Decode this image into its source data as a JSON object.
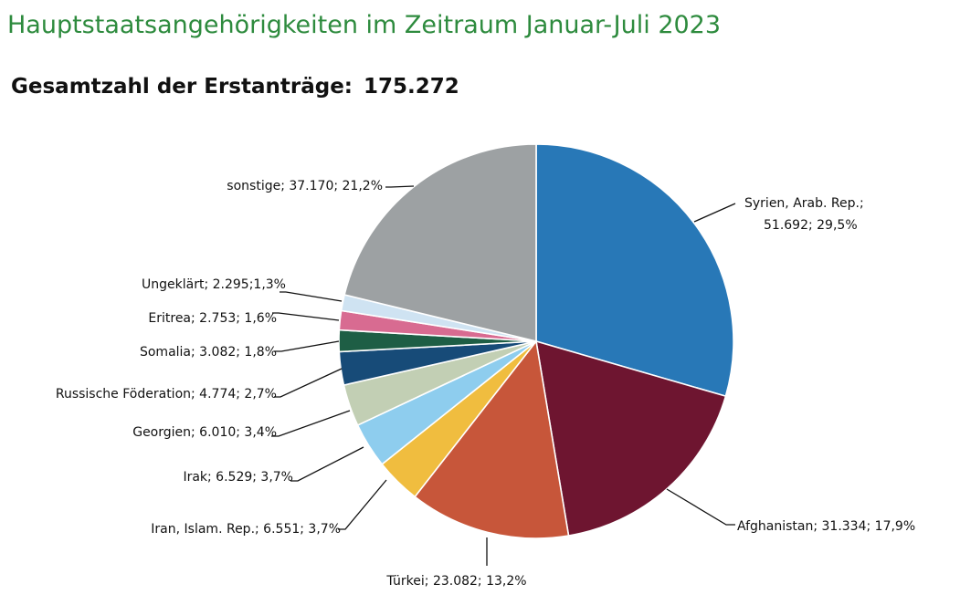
{
  "title": "Hauptstaatsangehörigkeiten im Zeitraum Januar-Juli 2023",
  "subtitle": {
    "label": "Gesamtzahl der Erstanträge:",
    "value": "175.272"
  },
  "chart_data": {
    "type": "pie",
    "start_angle": "12 o'clock",
    "direction": "clockwise",
    "slices": [
      {
        "name": "Syrien, Arab. Rep.",
        "value": 51692,
        "percent": 29.5,
        "color": "#2878b7",
        "label_lines": [
          "Syrien, Arab. Rep.;",
          "51.692; 29,5%"
        ]
      },
      {
        "name": "Afghanistan",
        "value": 31334,
        "percent": 17.9,
        "color": "#6e1530",
        "label_lines": [
          "Afghanistan; 31.334; 17,9%"
        ]
      },
      {
        "name": "Türkei",
        "value": 23082,
        "percent": 13.2,
        "color": "#c7563a",
        "label_lines": [
          "Türkei; 23.082; 13,2%"
        ]
      },
      {
        "name": "Iran, Islam. Rep.",
        "value": 6551,
        "percent": 3.7,
        "color": "#f0bd3f",
        "label_lines": [
          "Iran, Islam. Rep.; 6.551; 3,7%"
        ]
      },
      {
        "name": "Irak",
        "value": 6529,
        "percent": 3.7,
        "color": "#8ecdee",
        "label_lines": [
          "Irak; 6.529; 3,7%"
        ]
      },
      {
        "name": "Georgien",
        "value": 6010,
        "percent": 3.4,
        "color": "#c2cfb4",
        "label_lines": [
          "Georgien; 6.010; 3,4%"
        ]
      },
      {
        "name": "Russische Föderation",
        "value": 4774,
        "percent": 2.7,
        "color": "#174b78",
        "label_lines": [
          "Russische Föderation; 4.774; 2,7%"
        ]
      },
      {
        "name": "Somalia",
        "value": 3082,
        "percent": 1.8,
        "color": "#1e5e45",
        "label_lines": [
          "Somalia; 3.082; 1,8%"
        ]
      },
      {
        "name": "Eritrea",
        "value": 2753,
        "percent": 1.6,
        "color": "#d86b91",
        "label_lines": [
          "Eritrea; 2.753; 1,6%"
        ]
      },
      {
        "name": "Ungeklärt",
        "value": 2295,
        "percent": 1.3,
        "color": "#cfe3f2",
        "label_lines": [
          "Ungeklärt; 2.295;1,3%"
        ]
      },
      {
        "name": "sonstige",
        "value": 37170,
        "percent": 21.2,
        "color": "#9da1a3",
        "label_lines": [
          "sonstige; 37.170; 21,2%"
        ]
      }
    ]
  }
}
